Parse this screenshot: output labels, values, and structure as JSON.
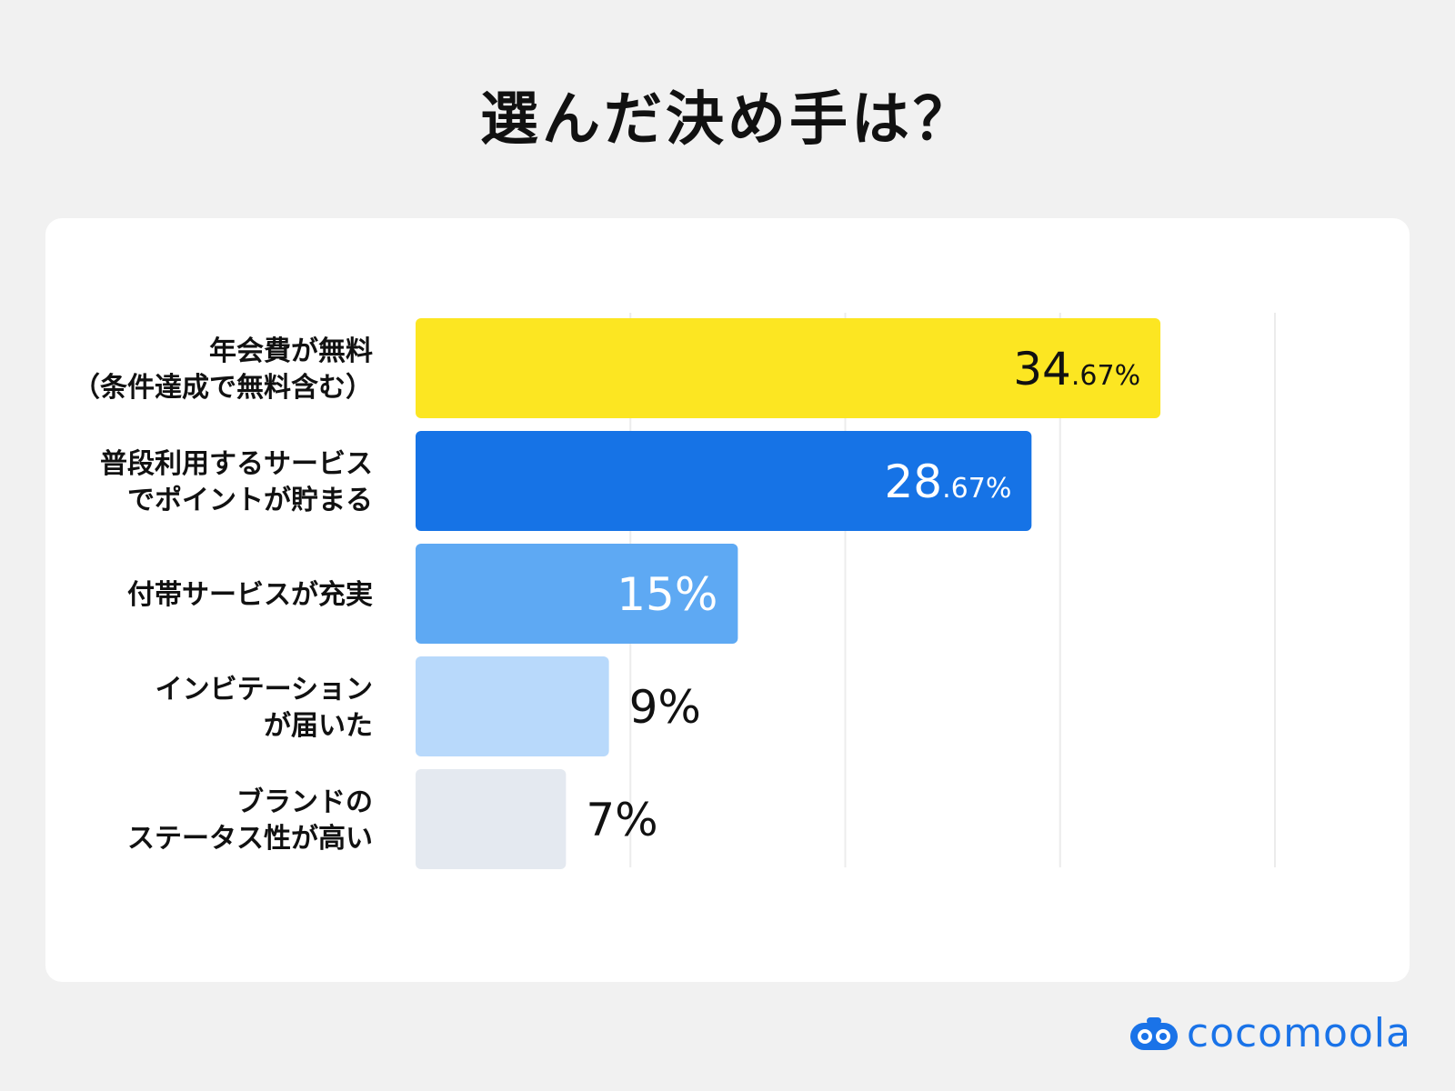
{
  "title": "選んだ決め手は？",
  "brand": {
    "name": "cocomoola",
    "icon": "cocomoola-logo-icon"
  },
  "chart_data": {
    "type": "bar",
    "orientation": "horizontal",
    "categories": [
      [
        "年会費が無料",
        "（条件達成で無料含む）"
      ],
      [
        "普段利用するサービス",
        "でポイントが貯まる"
      ],
      [
        "付帯サービスが充実"
      ],
      [
        "インビテーション",
        "が届いた"
      ],
      [
        "ブランドの",
        "ステータス性が高い"
      ]
    ],
    "values": [
      34.67,
      28.67,
      15,
      9,
      7
    ],
    "labels": [
      {
        "main": "34",
        "dec": ".67%"
      },
      {
        "main": "28",
        "dec": ".67%"
      },
      {
        "main": "15%",
        "dec": ""
      },
      {
        "main": "9%",
        "dec": ""
      },
      {
        "main": "7%",
        "dec": ""
      }
    ],
    "colors": [
      "#fce622",
      "#1673e6",
      "#5ea9f3",
      "#b8d9fb",
      "#e4e9f0"
    ],
    "label_colors": [
      "#111111",
      "#ffffff",
      "#ffffff",
      "#111111",
      "#111111"
    ],
    "xlim": [
      0,
      40
    ],
    "grid": true
  }
}
